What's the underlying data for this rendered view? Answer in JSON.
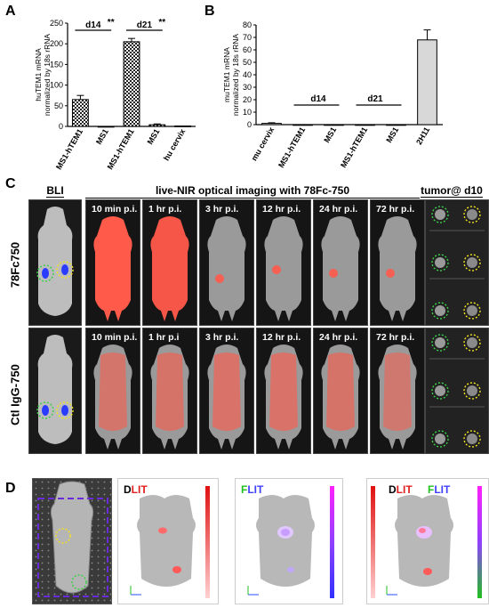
{
  "panels": {
    "A": "A",
    "B": "B",
    "C": "C",
    "D": "D"
  },
  "chart_data": [
    {
      "type": "bar",
      "panel": "A",
      "ylabel": "huTEM1 mRNA normalized by 18s rRNA",
      "ylabel_lines": [
        "huTEM1 mRNA",
        "normalized by 18s rRNA"
      ],
      "categories": [
        "MS1-hTEM1",
        "MS1",
        "MS1-hTEM1",
        "MS1",
        "hu cervix"
      ],
      "values": [
        65,
        0,
        205,
        4,
        1
      ],
      "errors": [
        10,
        0,
        8,
        2,
        0
      ],
      "ylim": [
        0,
        250
      ],
      "yticks": [
        "0",
        "50",
        "100",
        "150",
        "200",
        "250"
      ],
      "patterns": [
        "checker",
        "checker",
        "checker",
        "checker",
        "checker"
      ],
      "annotations": [
        {
          "text": "d14",
          "stars": "**"
        },
        {
          "text": "d21",
          "stars": "**"
        }
      ]
    },
    {
      "type": "bar",
      "panel": "B",
      "ylabel": "muTEM1 mRNA normalized by 18s rRNA",
      "ylabel_lines": [
        "muTEM1 mRNA",
        "normalized by 18s rRNA"
      ],
      "categories": [
        "mu cervix",
        "MS1-hTEM1",
        "MS1",
        "MS1-hTEM1",
        "MS1",
        "2H11"
      ],
      "values": [
        1,
        0,
        0,
        0,
        0,
        68
      ],
      "errors": [
        0.5,
        0,
        0,
        0,
        0,
        8
      ],
      "ylim": [
        0,
        80
      ],
      "yticks": [
        "0",
        "10",
        "20",
        "30",
        "40",
        "50",
        "60",
        "70",
        "80"
      ],
      "annotations": [
        {
          "text": "d14"
        },
        {
          "text": "d21"
        }
      ]
    }
  ],
  "panelC": {
    "header_bli": "BLI",
    "header_nir": "live-NIR optical imaging with 78Fc-750",
    "header_tumor": "tumor@ d10",
    "rows": [
      {
        "label": "78Fc750",
        "timepoints": [
          "10 min p.i.",
          "1 hr p.i.",
          "3 hr p.i.",
          "12  hr p.i.",
          "24 hr p.i.",
          "72 hr p.i."
        ],
        "signal": [
          1.0,
          0.95,
          0.15,
          0.1,
          0.08,
          0.05
        ]
      },
      {
        "label": "Ctl IgG-750",
        "timepoints": [
          "10 min p.i.",
          "1 hr p.i",
          "3 hr p.i.",
          "12  hr p.i.",
          "24 hr p.i.",
          "72 hr p.i."
        ],
        "signal": [
          0.45,
          0.5,
          0.55,
          0.55,
          0.5,
          0.35
        ]
      }
    ]
  },
  "panelD": {
    "dlit_d": "D",
    "dlit_lit": "LIT",
    "flit_f": "F",
    "flit_lit": "LIT"
  },
  "colors": {
    "nir": "#ff5a4a",
    "bli_dot_green": "#3ccf4a",
    "bli_dot_yellow": "#f0e020",
    "dlit_red": "#e02020",
    "flit_green": "#20c020",
    "flit_blue": "#4040ff"
  }
}
